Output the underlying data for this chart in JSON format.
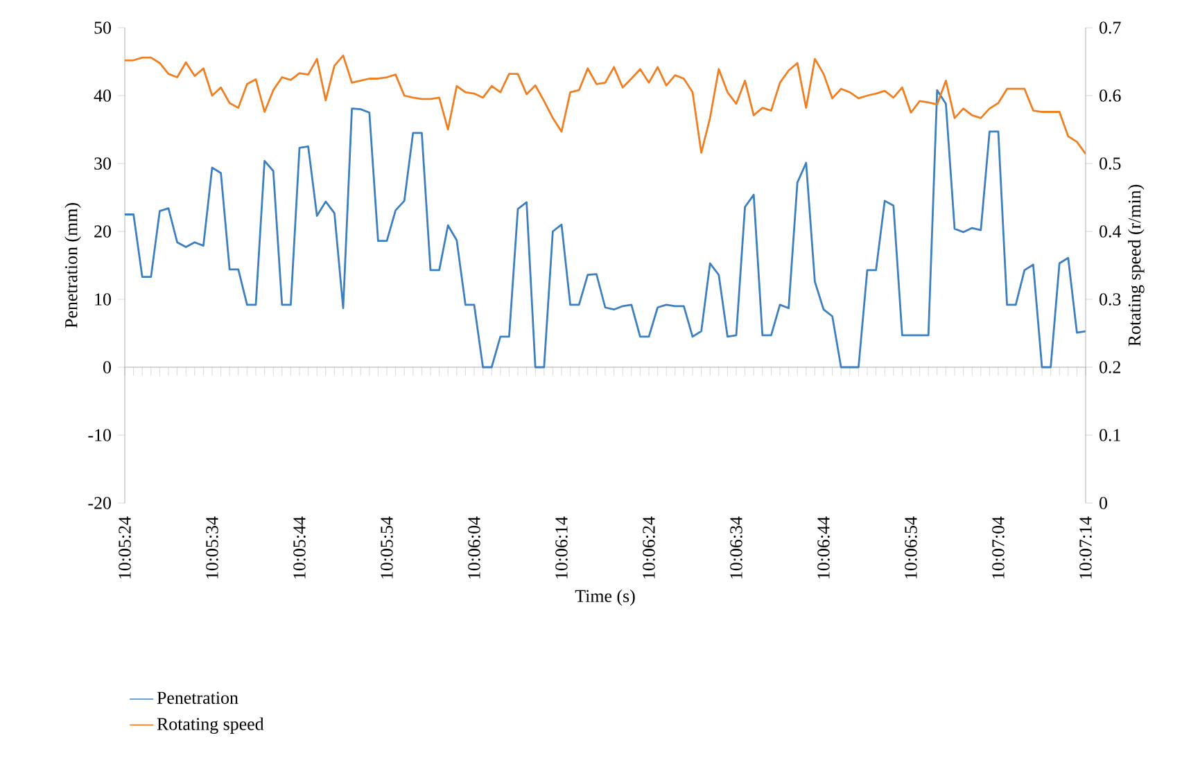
{
  "chart_data": {
    "type": "line",
    "xlabel": "Time (s)",
    "ylabel": "Penetration (mm)",
    "y2label": "Rotating speed (r/min)",
    "categories": [
      "10:05:24",
      null,
      null,
      null,
      null,
      null,
      null,
      null,
      null,
      null,
      "10:05:34",
      null,
      null,
      null,
      null,
      null,
      null,
      null,
      null,
      null,
      "10:05:44",
      null,
      null,
      null,
      null,
      null,
      null,
      null,
      null,
      null,
      "10:05:54",
      null,
      null,
      null,
      null,
      null,
      null,
      null,
      null,
      null,
      "10:06:04",
      null,
      null,
      null,
      null,
      null,
      null,
      null,
      null,
      null,
      "10:06:14",
      null,
      null,
      null,
      null,
      null,
      null,
      null,
      null,
      null,
      "10:06:24",
      null,
      null,
      null,
      null,
      null,
      null,
      null,
      null,
      null,
      "10:06:34",
      null,
      null,
      null,
      null,
      null,
      null,
      null,
      null,
      null,
      "10:06:44",
      null,
      null,
      null,
      null,
      null,
      null,
      null,
      null,
      null,
      "10:06:54",
      null,
      null,
      null,
      null,
      null,
      null,
      null,
      null,
      null,
      "10:07:04",
      null,
      null,
      null,
      null,
      null,
      null,
      null,
      null,
      null,
      "10:07:14"
    ],
    "ylim": [
      -20,
      50
    ],
    "yticks": [
      -20,
      -10,
      0,
      10,
      20,
      30,
      40,
      50
    ],
    "y2lim": [
      0,
      0.7
    ],
    "y2ticks": [
      0,
      0.1,
      0.2,
      0.3,
      0.4,
      0.5,
      0.6,
      0.7
    ],
    "legend": "bottom left",
    "series": [
      {
        "name": "Penetration",
        "color": "#3d7fc1",
        "values": [
          22.5,
          22.5,
          13.3,
          13.3,
          23,
          23.4,
          18.4,
          17.7,
          18.4,
          17.9,
          29.4,
          28.6,
          14.4,
          14.4,
          9.2,
          9.2,
          30.4,
          28.9,
          9.2,
          9.2,
          32.3,
          32.5,
          22.3,
          24.4,
          22.7,
          8.7,
          38.1,
          38,
          37.5,
          18.6,
          18.6,
          23.1,
          24.5,
          34.5,
          34.5,
          14.3,
          14.3,
          20.9,
          18.7,
          9.2,
          9.2,
          0,
          0,
          4.5,
          4.5,
          23.3,
          24.3,
          0,
          0,
          20,
          21,
          9.2,
          9.2,
          13.6,
          13.7,
          8.8,
          8.5,
          9,
          9.2,
          4.5,
          4.5,
          8.8,
          9.2,
          9,
          9,
          4.5,
          5.3,
          15.3,
          13.6,
          4.5,
          4.7,
          23.6,
          25.4,
          4.7,
          4.7,
          9.2,
          8.7,
          27.2,
          30.1,
          12.6,
          8.5,
          7.5,
          0,
          0,
          0,
          14.3,
          14.3,
          24.5,
          23.8,
          4.7,
          4.7,
          4.7,
          4.7,
          40.8,
          38.8,
          20.4,
          19.9,
          20.5,
          20.2,
          34.7,
          34.7,
          9.2,
          9.2,
          14.3,
          15.1,
          0,
          0,
          15.3,
          16.1,
          5.1,
          5.3
        ]
      },
      {
        "name": "Rotating speed",
        "color": "#f07f22",
        "axis": "y2",
        "values": [
          0.652,
          0.652,
          0.656,
          0.656,
          0.648,
          0.632,
          0.627,
          0.649,
          0.629,
          0.64,
          0.6,
          0.612,
          0.589,
          0.582,
          0.617,
          0.624,
          0.576,
          0.608,
          0.627,
          0.623,
          0.633,
          0.631,
          0.654,
          0.593,
          0.644,
          0.659,
          0.619,
          0.622,
          0.625,
          0.625,
          0.627,
          0.631,
          0.6,
          0.597,
          0.595,
          0.595,
          0.597,
          0.55,
          0.614,
          0.605,
          0.603,
          0.597,
          0.614,
          0.605,
          0.632,
          0.632,
          0.602,
          0.615,
          0.592,
          0.567,
          0.547,
          0.605,
          0.608,
          0.64,
          0.617,
          0.619,
          0.642,
          0.612,
          0.625,
          0.639,
          0.619,
          0.642,
          0.615,
          0.63,
          0.625,
          0.605,
          0.516,
          0.567,
          0.639,
          0.605,
          0.588,
          0.622,
          0.571,
          0.582,
          0.578,
          0.619,
          0.637,
          0.648,
          0.582,
          0.654,
          0.632,
          0.596,
          0.61,
          0.605,
          0.596,
          0.6,
          0.603,
          0.607,
          0.597,
          0.612,
          0.575,
          0.592,
          0.59,
          0.587,
          0.622,
          0.567,
          0.581,
          0.571,
          0.567,
          0.581,
          0.589,
          0.61,
          0.61,
          0.61,
          0.578,
          0.576,
          0.576,
          0.576,
          0.54,
          0.532,
          0.514
        ]
      }
    ]
  }
}
